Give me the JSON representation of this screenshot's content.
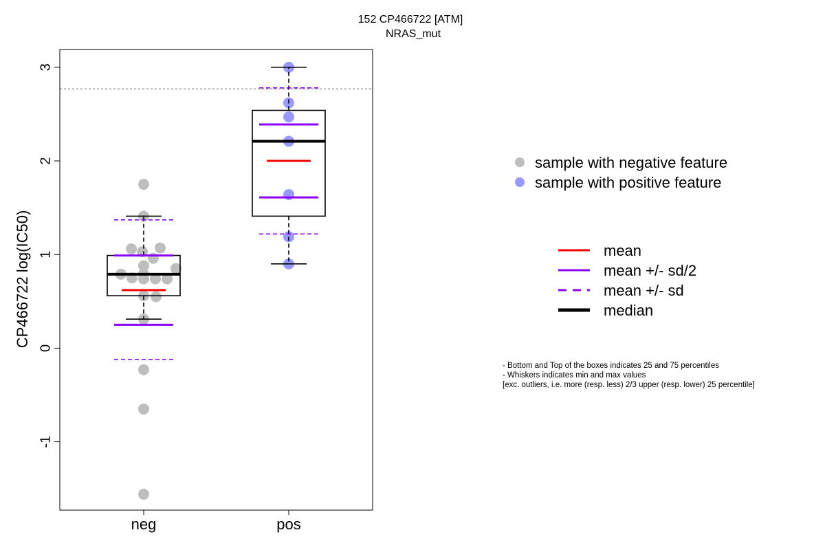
{
  "chart_data": {
    "type": "box",
    "title": "152 CP466722 [ATM]",
    "subtitle": "NRAS_mut",
    "ylabel": "CP466722 log(IC50)",
    "xlabel": "",
    "ylim": [
      -1.73,
      3.19
    ],
    "yticks": [
      -1,
      0,
      1,
      2,
      3
    ],
    "categories": [
      "neg",
      "pos"
    ],
    "reference_line": 2.77,
    "groups": [
      {
        "name": "neg",
        "color": "#bebebe",
        "points": [
          1.75,
          1.41,
          1.06,
          1.03,
          1.07,
          0.96,
          0.88,
          0.85,
          0.79,
          0.79,
          0.75,
          0.74,
          0.74,
          0.74,
          0.56,
          0.55,
          0.31,
          -0.23,
          -0.65,
          -1.56
        ],
        "whisker_low": 0.31,
        "q1": 0.56,
        "median": 0.79,
        "q3": 0.99,
        "whisker_high": 1.41,
        "mean": 0.62,
        "mean_plus_half_sd": 0.99,
        "mean_minus_half_sd": 0.25,
        "mean_plus_sd": 1.37,
        "mean_minus_sd": -0.12
      },
      {
        "name": "pos",
        "color": "#9999ff",
        "points": [
          3.0,
          2.62,
          2.47,
          2.21,
          1.64,
          1.19,
          0.9
        ],
        "whisker_low": 0.9,
        "q1": 1.41,
        "median": 2.21,
        "q3": 2.54,
        "whisker_high": 3.0,
        "mean": 2.0,
        "mean_plus_half_sd": 2.39,
        "mean_minus_half_sd": 1.61,
        "mean_plus_sd": 2.78,
        "mean_minus_sd": 1.22
      }
    ],
    "legend_points": [
      {
        "label": "sample with negative feature",
        "color": "#bebebe"
      },
      {
        "label": "sample with positive feature",
        "color": "#9999ff"
      }
    ],
    "legend_lines": [
      {
        "label": "mean",
        "color": "#ff0000",
        "style": "solid-thin"
      },
      {
        "label": "mean +/- sd/2",
        "color": "#8b00ff",
        "style": "solid-thin"
      },
      {
        "label": "mean +/- sd",
        "color": "#8b00ff",
        "style": "dashed"
      },
      {
        "label": "median",
        "color": "#000000",
        "style": "solid-thick"
      }
    ],
    "colors": {
      "mean": "#ff0000",
      "sd": "#8b00ff",
      "median": "#000000",
      "reference": "#666666"
    },
    "notes": [
      "- Bottom and Top of the boxes indicates 25 and 75 percentiles",
      "- Whiskers indicates min and max values",
      "[exc. outliers, i.e. more (resp. less) 2/3 upper (resp. lower) 25 percentile]"
    ]
  }
}
